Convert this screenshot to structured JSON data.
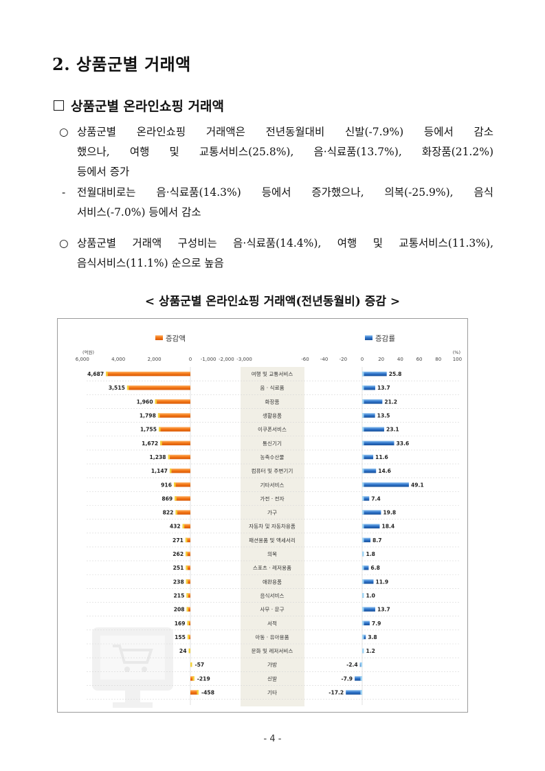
{
  "section_title": "2. 상품군별 거래액",
  "subsection_title": "상품군별 온라인쇼핑 거래액",
  "paragraphs": [
    {
      "marker": "○",
      "lines": [
        "상품군별 온라인쇼핑 거래액은 전년동월대비 신발(-7.9%) 등에서 감소",
        "했으나, 여행 및 교통서비스(25.8%), 음·식료품(13.7%), 화장품(21.2%)",
        "등에서 증가"
      ]
    },
    {
      "marker": "-",
      "lines": [
        "전월대비로는 음·식료품(14.3%) 등에서 증가했으나, 의복(-25.9%), 음식",
        "서비스(-7.0%) 등에서 감소"
      ]
    },
    {
      "marker": "○",
      "lines": [
        "상품군별 거래액 구성비는 음·식료품(14.4%), 여행 및 교통서비스(11.3%),",
        "음식서비스(11.1%) 순으로 높음"
      ]
    }
  ],
  "chart_title": "< 상품군별 온라인쇼핑 거래액(전년동월비) 증감 >",
  "chart_data": {
    "type": "bar",
    "legend_left": "증감액",
    "legend_right": "증감률",
    "unit_left": "(억원)",
    "unit_right": "(%)",
    "left_ticks": [
      "6,000",
      "4,000",
      "2,000",
      "0",
      "-1,000",
      "-2,000",
      "-3,000"
    ],
    "right_ticks": [
      "-60",
      "-40",
      "-20",
      "0",
      "20",
      "40",
      "60",
      "80",
      "100"
    ],
    "categories": [
      "여행 및 교통서비스",
      "음 · 식료품",
      "화장품",
      "생활용품",
      "이쿠폰서비스",
      "통신기기",
      "농축수산물",
      "컴퓨터 및 주변기기",
      "기타서비스",
      "가전 · 전자",
      "가구",
      "자동차 및 자동차용품",
      "패션용품 및 액세서리",
      "의복",
      "스포츠 · 레저용품",
      "애완용품",
      "음식서비스",
      "사무 · 문구",
      "서적",
      "아동 · 유아용품",
      "문화 및 레저서비스",
      "가방",
      "신발",
      "기타"
    ],
    "series": [
      {
        "name": "증감액",
        "values": [
          4687,
          3515,
          1960,
          1798,
          1755,
          1672,
          1238,
          1147,
          916,
          869,
          822,
          432,
          271,
          262,
          251,
          238,
          215,
          208,
          169,
          155,
          24,
          -57,
          -219,
          -458
        ],
        "labels": [
          "4,687",
          "3,515",
          "1,960",
          "1,798",
          "1,755",
          "1,672",
          "1,238",
          "1,147",
          "916",
          "869",
          "822",
          "432",
          "271",
          "262",
          "251",
          "238",
          "215",
          "208",
          "169",
          "155",
          "24",
          "-57",
          "-219",
          "-458"
        ]
      },
      {
        "name": "증감률",
        "values": [
          25.8,
          13.7,
          21.2,
          13.5,
          23.1,
          33.6,
          11.6,
          14.6,
          49.1,
          7.4,
          19.8,
          18.4,
          8.7,
          1.8,
          6.8,
          11.9,
          1.0,
          13.7,
          7.9,
          3.8,
          1.2,
          -2.4,
          -7.9,
          -17.2
        ],
        "labels": [
          "25.8",
          "13.7",
          "21.2",
          "13.5",
          "23.1",
          "33.6",
          "11.6",
          "14.6",
          "49.1",
          "7.4",
          "19.8",
          "18.4",
          "8.7",
          "1.8",
          "6.8",
          "11.9",
          "1.0",
          "13.7",
          "7.9",
          "3.8",
          "1.2",
          "-2.4",
          "-7.9",
          "-17.2"
        ]
      }
    ],
    "colors": {
      "amount": "#f07a1a",
      "rate": "#2b6fc4"
    }
  },
  "page_number": "- 4 -"
}
